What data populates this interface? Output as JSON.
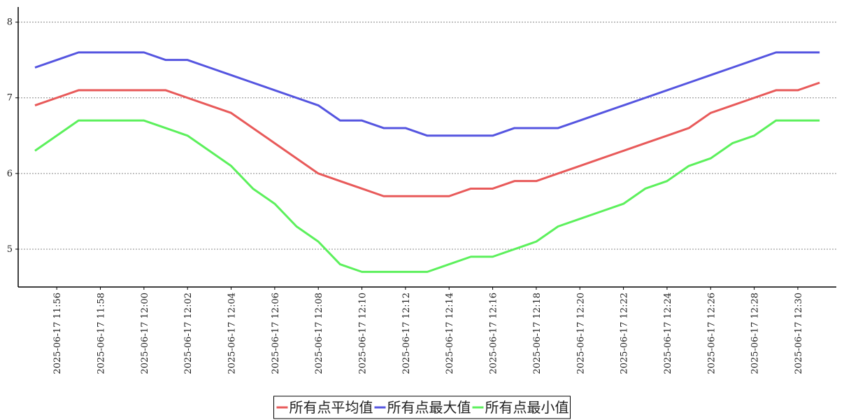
{
  "chart_data": {
    "type": "line",
    "categories": [
      null,
      "2025-06-17 11:56",
      null,
      "2025-06-17 11:58",
      null,
      "2025-06-17 12:00",
      null,
      "2025-06-17 12:02",
      null,
      "2025-06-17 12:04",
      null,
      "2025-06-17 12:06",
      null,
      "2025-06-17 12:08",
      null,
      "2025-06-17 12:10",
      null,
      "2025-06-17 12:12",
      null,
      "2025-06-17 12:14",
      null,
      "2025-06-17 12:16",
      null,
      "2025-06-17 12:18",
      null,
      "2025-06-17 12:20",
      null,
      "2025-06-17 12:22",
      null,
      "2025-06-17 12:24",
      null,
      "2025-06-17 12:26",
      null,
      "2025-06-17 12:28",
      null,
      "2025-06-17 12:30",
      null
    ],
    "series": [
      {
        "name": "所有点平均值",
        "color": "#e85a5a",
        "values": [
          6.9,
          7.0,
          7.1,
          7.1,
          7.1,
          7.1,
          7.1,
          7.0,
          6.9,
          6.8,
          6.6,
          6.4,
          6.2,
          6.0,
          5.9,
          5.8,
          5.7,
          5.7,
          5.7,
          5.7,
          5.8,
          5.8,
          5.9,
          5.9,
          6.0,
          6.1,
          6.2,
          6.3,
          6.4,
          6.5,
          6.6,
          6.8,
          6.9,
          7.0,
          7.1,
          7.1,
          7.2
        ]
      },
      {
        "name": "所有点最大值",
        "color": "#5555e0",
        "values": [
          7.4,
          7.5,
          7.6,
          7.6,
          7.6,
          7.6,
          7.5,
          7.5,
          7.4,
          7.3,
          7.2,
          7.1,
          7.0,
          6.9,
          6.7,
          6.7,
          6.6,
          6.6,
          6.5,
          6.5,
          6.5,
          6.5,
          6.6,
          6.6,
          6.6,
          6.7,
          6.8,
          6.9,
          7.0,
          7.1,
          7.2,
          7.3,
          7.4,
          7.5,
          7.6,
          7.6,
          7.6
        ]
      },
      {
        "name": "所有点最小值",
        "color": "#5cf05c",
        "values": [
          6.3,
          6.5,
          6.7,
          6.7,
          6.7,
          6.7,
          6.6,
          6.5,
          6.3,
          6.1,
          5.8,
          5.6,
          5.3,
          5.1,
          4.8,
          4.7,
          4.7,
          4.7,
          4.7,
          4.8,
          4.9,
          4.9,
          5.0,
          5.1,
          5.3,
          5.4,
          5.5,
          5.6,
          5.8,
          5.9,
          6.1,
          6.2,
          6.4,
          6.5,
          6.7,
          6.7,
          6.7
        ]
      }
    ],
    "ylim": [
      4.5,
      8.2
    ],
    "yticks": [
      5,
      6,
      7,
      8
    ],
    "grid": true
  }
}
